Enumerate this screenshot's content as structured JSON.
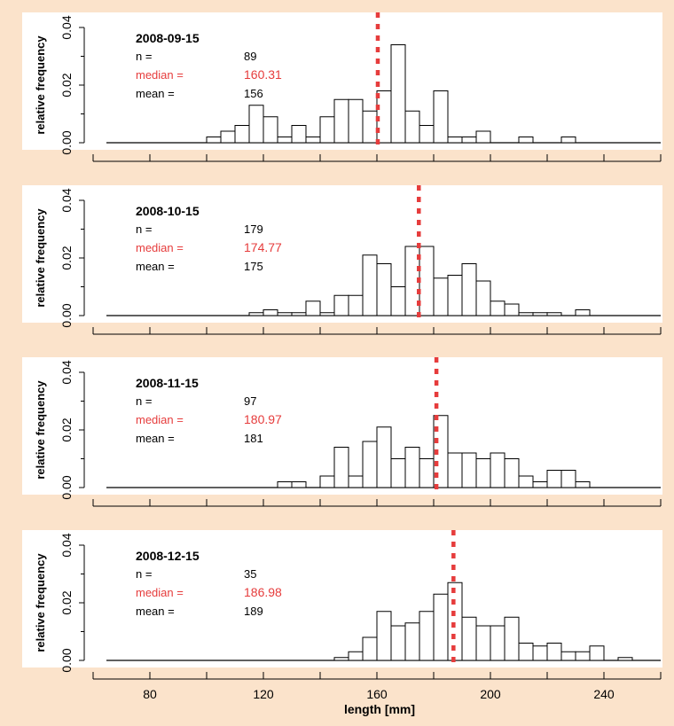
{
  "colors": {
    "background": "#fbe3cb",
    "panel": "#ffffff",
    "median": "#e63c3c",
    "text": "#000000"
  },
  "chart_data": {
    "type": "bar",
    "subtype": "histogram-stack",
    "bin_width": 5,
    "xlim": [
      60,
      260
    ],
    "ylim": [
      0,
      0.04
    ],
    "x_ticks": [
      80,
      120,
      160,
      200,
      240
    ],
    "y_ticks": [
      0,
      0.02,
      0.04
    ],
    "y_tick_labels": [
      "0.00",
      "0.02",
      "0.04"
    ],
    "xlabel": "length [mm]",
    "ylabel": "relative frequency",
    "label_n": "n =",
    "label_median": "median =",
    "label_mean": "mean =",
    "median_line": "dotted vertical line at median",
    "panels": [
      {
        "date": "2008-09-15",
        "n": "89",
        "median": "160.31",
        "mean": "156",
        "median_value": 160.31,
        "bins": [
          [
            100,
            0.002
          ],
          [
            105,
            0.004
          ],
          [
            110,
            0.006
          ],
          [
            115,
            0.013
          ],
          [
            120,
            0.009
          ],
          [
            125,
            0.002
          ],
          [
            130,
            0.006
          ],
          [
            135,
            0.002
          ],
          [
            140,
            0.009
          ],
          [
            145,
            0.015
          ],
          [
            150,
            0.015
          ],
          [
            155,
            0.011
          ],
          [
            160,
            0.018
          ],
          [
            165,
            0.034
          ],
          [
            170,
            0.011
          ],
          [
            175,
            0.006
          ],
          [
            180,
            0.018
          ],
          [
            185,
            0.002
          ],
          [
            190,
            0.002
          ],
          [
            195,
            0.004
          ],
          [
            210,
            0.002
          ],
          [
            225,
            0.002
          ]
        ]
      },
      {
        "date": "2008-10-15",
        "n": "179",
        "median": "174.77",
        "mean": "175",
        "median_value": 174.77,
        "bins": [
          [
            115,
            0.001
          ],
          [
            120,
            0.002
          ],
          [
            125,
            0.001
          ],
          [
            130,
            0.001
          ],
          [
            135,
            0.005
          ],
          [
            140,
            0.001
          ],
          [
            145,
            0.007
          ],
          [
            150,
            0.007
          ],
          [
            155,
            0.021
          ],
          [
            160,
            0.018
          ],
          [
            165,
            0.01
          ],
          [
            170,
            0.024
          ],
          [
            175,
            0.024
          ],
          [
            180,
            0.013
          ],
          [
            185,
            0.014
          ],
          [
            190,
            0.018
          ],
          [
            195,
            0.012
          ],
          [
            200,
            0.005
          ],
          [
            205,
            0.004
          ],
          [
            210,
            0.001
          ],
          [
            215,
            0.001
          ],
          [
            220,
            0.001
          ],
          [
            230,
            0.002
          ]
        ]
      },
      {
        "date": "2008-11-15",
        "n": "97",
        "median": "180.97",
        "mean": "181",
        "median_value": 180.97,
        "bins": [
          [
            125,
            0.002
          ],
          [
            130,
            0.002
          ],
          [
            140,
            0.004
          ],
          [
            145,
            0.014
          ],
          [
            150,
            0.004
          ],
          [
            155,
            0.016
          ],
          [
            160,
            0.021
          ],
          [
            165,
            0.01
          ],
          [
            170,
            0.014
          ],
          [
            175,
            0.01
          ],
          [
            180,
            0.025
          ],
          [
            185,
            0.012
          ],
          [
            190,
            0.012
          ],
          [
            195,
            0.01
          ],
          [
            200,
            0.012
          ],
          [
            205,
            0.01
          ],
          [
            210,
            0.004
          ],
          [
            215,
            0.002
          ],
          [
            220,
            0.006
          ],
          [
            225,
            0.006
          ],
          [
            230,
            0.002
          ]
        ]
      },
      {
        "date": "2008-12-15",
        "n": "35",
        "median": "186.98",
        "mean": "189",
        "median_value": 186.98,
        "bins": [
          [
            145,
            0.001
          ],
          [
            150,
            0.003
          ],
          [
            155,
            0.008
          ],
          [
            160,
            0.017
          ],
          [
            165,
            0.012
          ],
          [
            170,
            0.013
          ],
          [
            175,
            0.017
          ],
          [
            180,
            0.023
          ],
          [
            185,
            0.027
          ],
          [
            190,
            0.015
          ],
          [
            195,
            0.012
          ],
          [
            200,
            0.012
          ],
          [
            205,
            0.015
          ],
          [
            210,
            0.006
          ],
          [
            215,
            0.005
          ],
          [
            220,
            0.006
          ],
          [
            225,
            0.003
          ],
          [
            230,
            0.003
          ],
          [
            235,
            0.005
          ],
          [
            245,
            0.001
          ]
        ]
      }
    ]
  }
}
